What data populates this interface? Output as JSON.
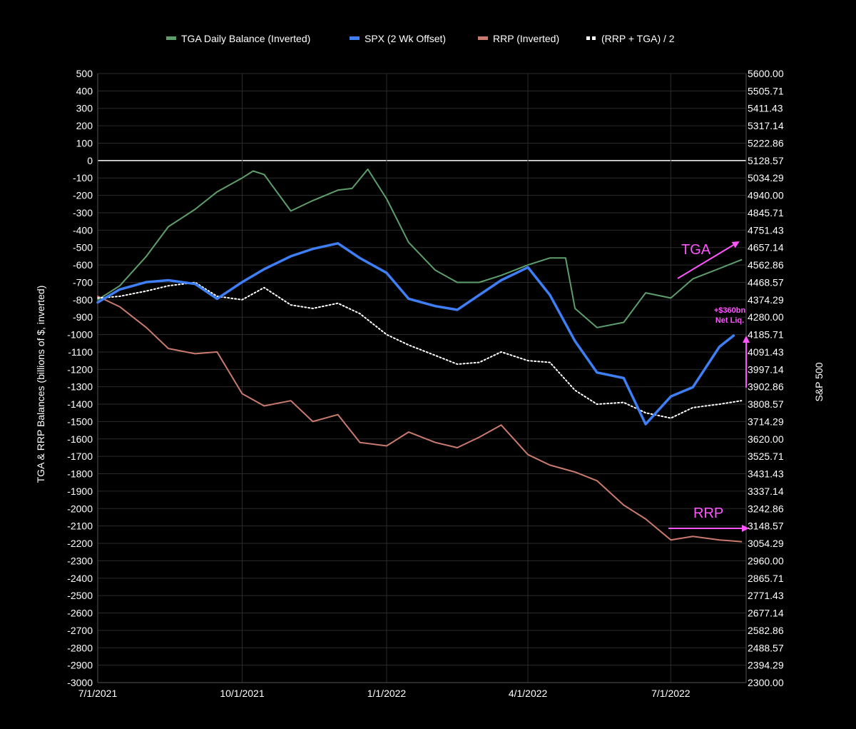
{
  "chart_data": {
    "type": "line",
    "legend_position": "top",
    "grid": true,
    "left_axis": {
      "label": "TGA & RRP Balances (billions of $, inverted)",
      "ylim": [
        -3000,
        500
      ],
      "ticks": [
        "500",
        "400",
        "300",
        "200",
        "100",
        "0",
        "-100",
        "-200",
        "-300",
        "-400",
        "-500",
        "-600",
        "-700",
        "-800",
        "-900",
        "-1000",
        "-1100",
        "-1200",
        "-1300",
        "-1400",
        "-1500",
        "-1600",
        "-1700",
        "-1800",
        "-1900",
        "-2000",
        "-2100",
        "-2200",
        "-2300",
        "-2400",
        "-2500",
        "-2600",
        "-2700",
        "-2800",
        "-2900",
        "-3000"
      ]
    },
    "right_axis": {
      "label": "S&P 500",
      "ylim": [
        2300,
        5600
      ],
      "ticks": [
        "5600.00",
        "5505.71",
        "5411.43",
        "5317.14",
        "5222.86",
        "5128.57",
        "5034.29",
        "4940.00",
        "4845.71",
        "4751.43",
        "4657.14",
        "4562.86",
        "4468.57",
        "4374.29",
        "4280.00",
        "4185.71",
        "4091.43",
        "3997.14",
        "3902.86",
        "3808.57",
        "3714.29",
        "3620.00",
        "3525.71",
        "3431.43",
        "3337.14",
        "3242.86",
        "3148.57",
        "3054.29",
        "2960.00",
        "2865.71",
        "2771.43",
        "2677.14",
        "2582.86",
        "2488.57",
        "2394.29",
        "2300.00"
      ]
    },
    "x_axis": {
      "type": "date",
      "range": [
        "2021-07-01",
        "2022-08-18"
      ],
      "ticks": [
        {
          "date": "2021-07-01",
          "label": "7/1/2021"
        },
        {
          "date": "2021-10-01",
          "label": "10/1/2021"
        },
        {
          "date": "2022-01-01",
          "label": "1/1/2022"
        },
        {
          "date": "2022-04-01",
          "label": "4/1/2022"
        },
        {
          "date": "2022-07-01",
          "label": "7/1/2022"
        }
      ]
    },
    "series": [
      {
        "name": "TGA Daily Balance (Inverted)",
        "axis": "left",
        "color": "#5e9e6c",
        "style": "solid",
        "x": [
          "2021-07-01",
          "2021-07-15",
          "2021-08-01",
          "2021-08-15",
          "2021-09-01",
          "2021-09-15",
          "2021-10-01",
          "2021-10-08",
          "2021-10-15",
          "2021-11-01",
          "2021-11-15",
          "2021-12-01",
          "2021-12-10",
          "2021-12-20",
          "2022-01-01",
          "2022-01-15",
          "2022-02-01",
          "2022-02-15",
          "2022-03-01",
          "2022-03-15",
          "2022-04-01",
          "2022-04-15",
          "2022-04-25",
          "2022-05-01",
          "2022-05-15",
          "2022-06-01",
          "2022-06-15",
          "2022-07-01",
          "2022-07-15",
          "2022-08-01",
          "2022-08-15"
        ],
        "y": [
          -800,
          -720,
          -550,
          -380,
          -280,
          -180,
          -100,
          -60,
          -80,
          -290,
          -230,
          -170,
          -160,
          -50,
          -220,
          -470,
          -630,
          -700,
          -700,
          -660,
          -600,
          -560,
          -560,
          -850,
          -960,
          -930,
          -760,
          -790,
          -680,
          -620,
          -570
        ]
      },
      {
        "name": "SPX (2 Wk Offset)",
        "axis": "right",
        "color": "#3f7ff5",
        "style": "solid",
        "x": [
          "2021-07-01",
          "2021-07-15",
          "2021-08-01",
          "2021-08-15",
          "2021-09-01",
          "2021-09-15",
          "2021-10-01",
          "2021-10-15",
          "2021-11-01",
          "2021-11-15",
          "2021-12-01",
          "2021-12-15",
          "2022-01-01",
          "2022-01-15",
          "2022-02-01",
          "2022-02-15",
          "2022-03-01",
          "2022-03-15",
          "2022-04-01",
          "2022-04-15",
          "2022-05-01",
          "2022-05-15",
          "2022-06-01",
          "2022-06-15",
          "2022-07-01",
          "2022-07-15",
          "2022-08-01",
          "2022-08-10"
        ],
        "y": [
          4360,
          4430,
          4470,
          4480,
          4460,
          4380,
          4470,
          4540,
          4610,
          4650,
          4680,
          4600,
          4520,
          4380,
          4340,
          4320,
          4400,
          4480,
          4550,
          4400,
          4150,
          3980,
          3950,
          3700,
          3850,
          3900,
          4120,
          4180
        ]
      },
      {
        "name": "RRP (Inverted)",
        "axis": "left",
        "color": "#c97a6e",
        "style": "solid",
        "x": [
          "2021-07-01",
          "2021-07-15",
          "2021-08-01",
          "2021-08-15",
          "2021-09-01",
          "2021-09-15",
          "2021-10-01",
          "2021-10-15",
          "2021-11-01",
          "2021-11-15",
          "2021-12-01",
          "2021-12-15",
          "2022-01-01",
          "2022-01-15",
          "2022-02-01",
          "2022-02-15",
          "2022-03-01",
          "2022-03-15",
          "2022-04-01",
          "2022-04-15",
          "2022-05-01",
          "2022-05-15",
          "2022-06-01",
          "2022-06-15",
          "2022-07-01",
          "2022-07-15",
          "2022-08-01",
          "2022-08-15"
        ],
        "y": [
          -780,
          -840,
          -960,
          -1080,
          -1110,
          -1100,
          -1340,
          -1410,
          -1380,
          -1500,
          -1460,
          -1620,
          -1640,
          -1560,
          -1620,
          -1650,
          -1590,
          -1520,
          -1690,
          -1750,
          -1790,
          -1840,
          -1980,
          -2060,
          -2180,
          -2160,
          -2180,
          -2190
        ]
      },
      {
        "name": "(RRP + TGA) / 2",
        "axis": "left",
        "color": "#ffffff",
        "style": "dotted",
        "x": [
          "2021-07-01",
          "2021-07-15",
          "2021-08-01",
          "2021-08-15",
          "2021-09-01",
          "2021-09-15",
          "2021-10-01",
          "2021-10-15",
          "2021-11-01",
          "2021-11-15",
          "2021-12-01",
          "2021-12-15",
          "2022-01-01",
          "2022-01-15",
          "2022-02-01",
          "2022-02-15",
          "2022-03-01",
          "2022-03-15",
          "2022-04-01",
          "2022-04-15",
          "2022-05-01",
          "2022-05-15",
          "2022-06-01",
          "2022-06-15",
          "2022-07-01",
          "2022-07-15",
          "2022-08-01",
          "2022-08-15"
        ],
        "y": [
          -790,
          -780,
          -750,
          -720,
          -700,
          -780,
          -800,
          -730,
          -830,
          -850,
          -820,
          -880,
          -1000,
          -1060,
          -1120,
          -1170,
          -1160,
          -1100,
          -1150,
          -1160,
          -1320,
          -1400,
          -1390,
          -1450,
          -1480,
          -1420,
          -1400,
          -1380
        ]
      }
    ],
    "annotations": [
      {
        "text": "TGA",
        "color": "#ff55ff"
      },
      {
        "text": "RRP",
        "color": "#ff55ff"
      },
      {
        "text": "+$360bn",
        "color": "#ff55ff"
      },
      {
        "text": "Net Liq.",
        "color": "#ff55ff"
      }
    ]
  }
}
